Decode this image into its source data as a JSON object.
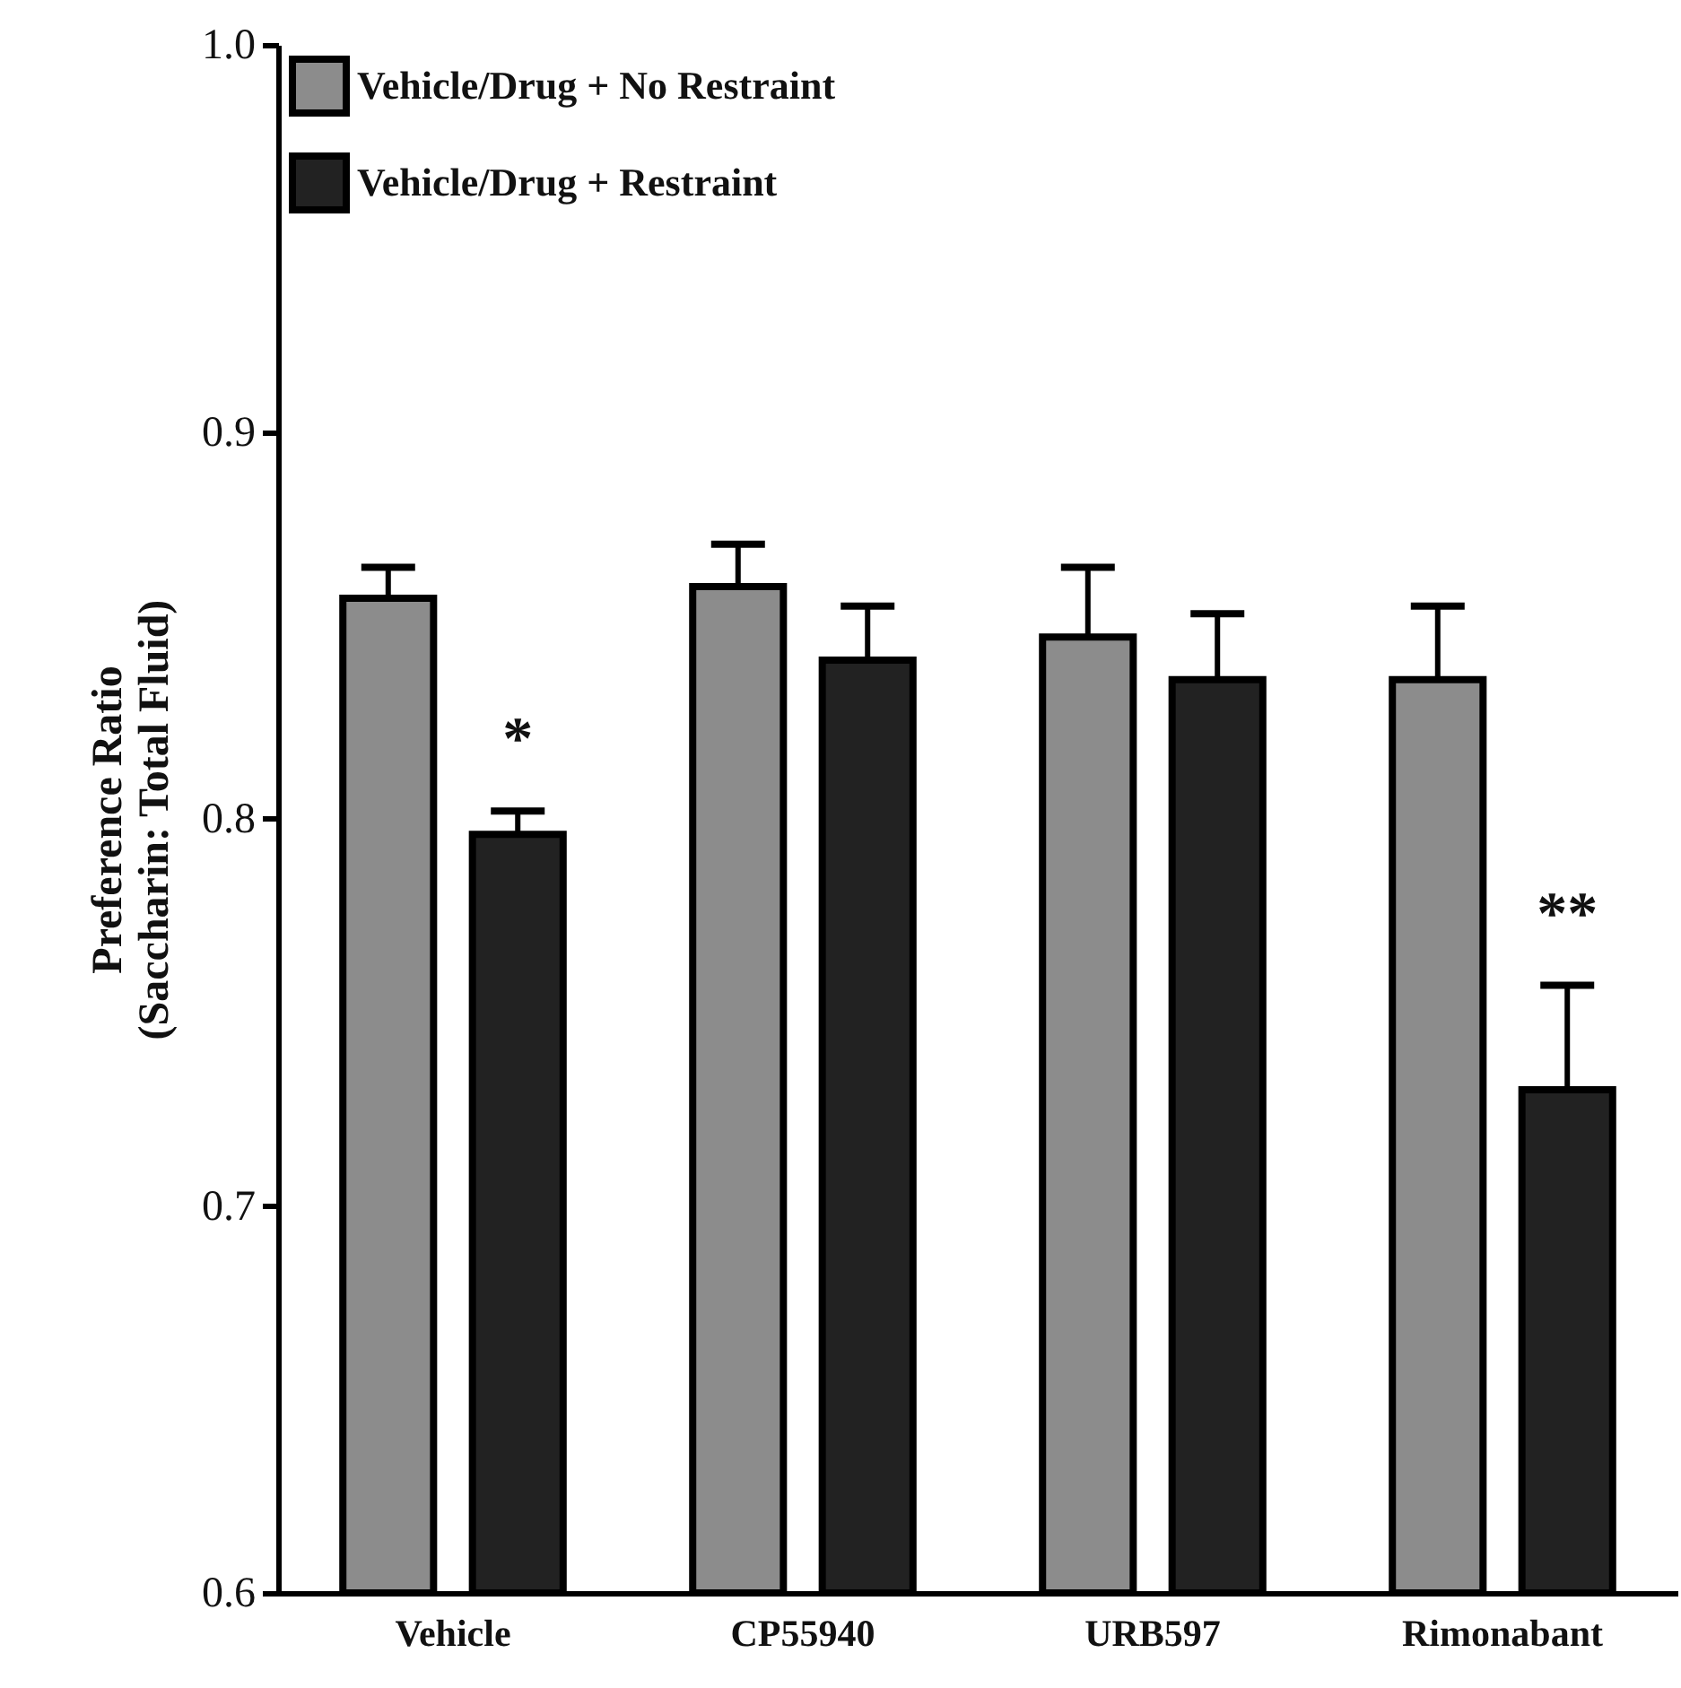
{
  "chart_data": {
    "type": "bar",
    "ylabel": "Preference Ratio\n(Saccharin: Total Fluid)",
    "categories": [
      "Vehicle",
      "CP55940",
      "URB597",
      "Rimonabant"
    ],
    "series": [
      {
        "name": "Vehicle/Drug + No Restraint",
        "color": "#8c8c8c",
        "values": [
          0.857,
          0.86,
          0.847,
          0.836
        ],
        "errors": [
          0.008,
          0.011,
          0.018,
          0.019
        ]
      },
      {
        "name": "Vehicle/Drug + Restraint",
        "color": "#222222",
        "values": [
          0.796,
          0.841,
          0.836,
          0.73
        ],
        "errors": [
          0.006,
          0.014,
          0.017,
          0.027
        ],
        "value_labels": [
          "*",
          null,
          null,
          "**"
        ]
      }
    ],
    "ylim": [
      0.6,
      1.0
    ],
    "yticks": [
      {
        "value": 0.6,
        "label": "0.6"
      },
      {
        "value": 0.7,
        "label": "0.7"
      },
      {
        "value": 0.8,
        "label": "0.8"
      },
      {
        "value": 0.9,
        "label": "0.9"
      },
      {
        "value": 1.0,
        "label": "1.0"
      }
    ],
    "legend": "top left",
    "grid": false
  }
}
